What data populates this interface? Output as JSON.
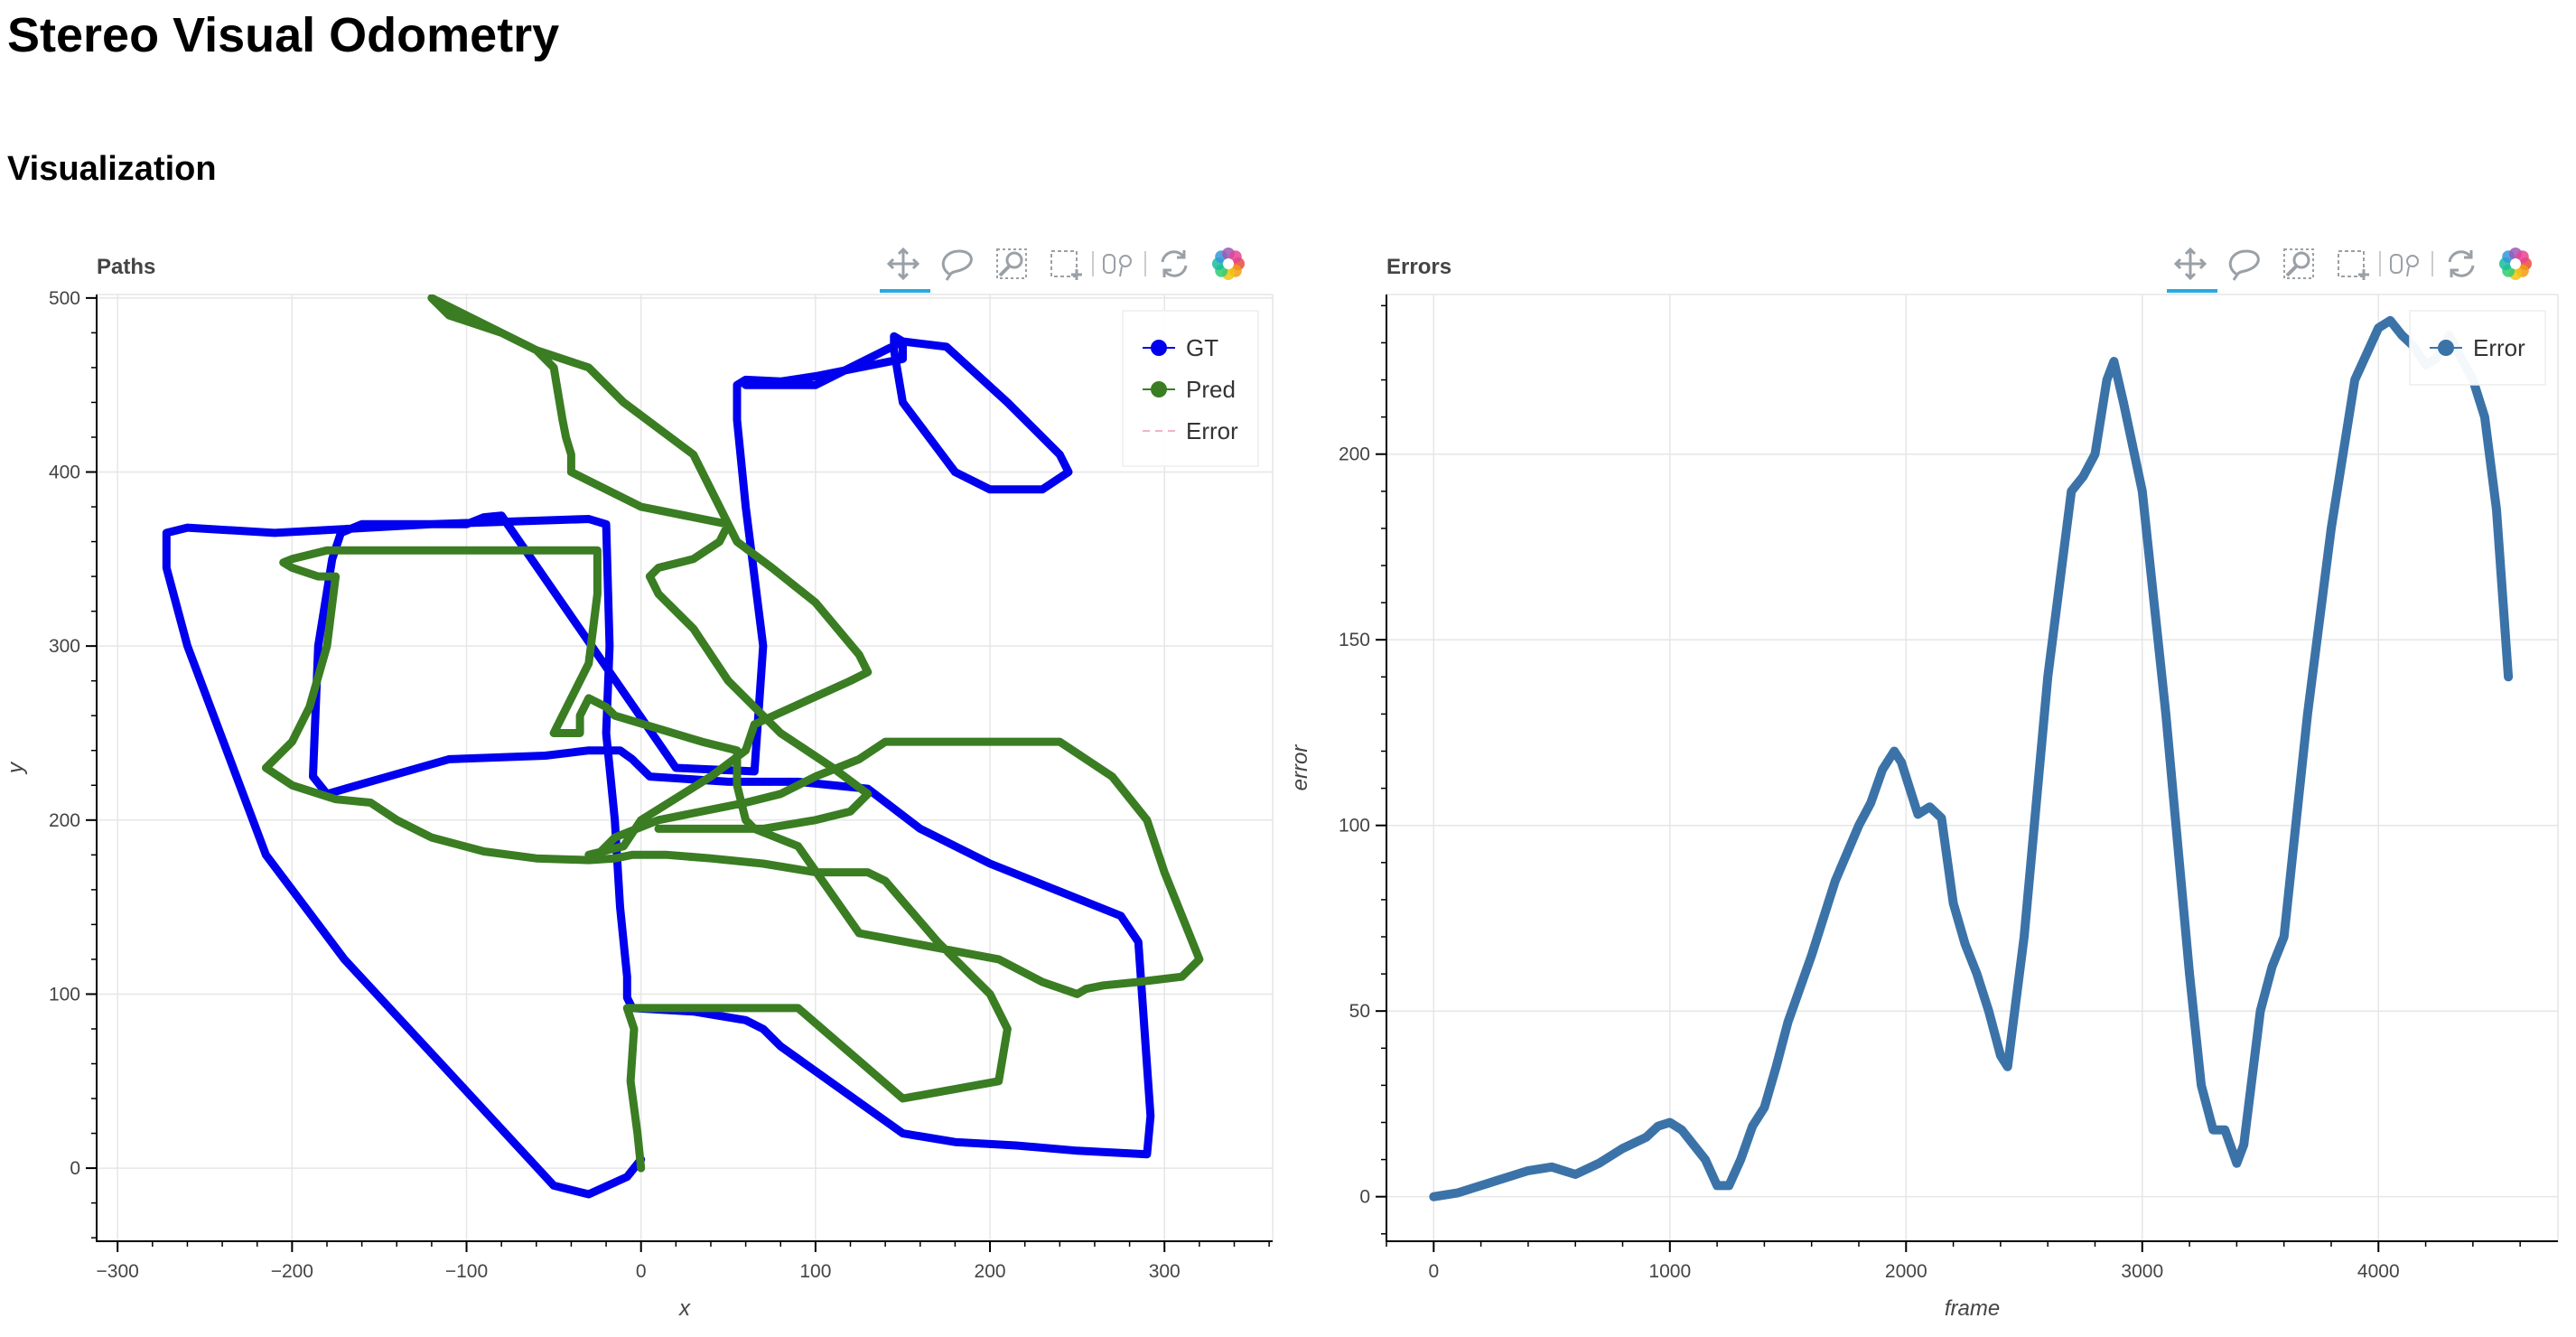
{
  "page": {
    "title": "Stereo Visual Odometry",
    "section": "Visualization"
  },
  "toolbar_tools": [
    "pan-tool",
    "lasso-select-tool",
    "wheel-zoom-tool",
    "box-select-tool",
    "hover-tool",
    "reset-tool",
    "bokeh-logo"
  ],
  "colors": {
    "gt": "#0000ee",
    "pred": "#3a7d22",
    "error": "#3b73a8",
    "error_legend_muted": "#f2b3c2"
  },
  "chart_data": [
    {
      "type": "line",
      "title": "Paths",
      "xlabel": "x",
      "ylabel": "y",
      "xlim": [
        -312,
        362
      ],
      "ylim": [
        -42,
        502
      ],
      "xticks": [
        "−300",
        "−200",
        "−100",
        "0",
        "100",
        "200",
        "300"
      ],
      "xtick_values": [
        -300,
        -200,
        -100,
        0,
        100,
        200,
        300
      ],
      "yticks": [
        "0",
        "100",
        "200",
        "300",
        "400",
        "500"
      ],
      "ytick_values": [
        0,
        100,
        200,
        300,
        400,
        500
      ],
      "grid": true,
      "legend_position": "top-right",
      "legend": [
        "GT",
        "Pred",
        "Error"
      ],
      "series": [
        {
          "name": "GT",
          "x": [
            0,
            -8,
            -30,
            -50,
            -110,
            -170,
            -215,
            -260,
            -272,
            -272,
            -260,
            -210,
            -120,
            -30,
            -20,
            -18,
            -20,
            -15,
            -12,
            -8,
            -8,
            -5,
            30,
            60,
            70,
            80,
            150,
            180,
            215,
            250,
            290,
            292,
            285,
            275,
            200,
            160,
            130,
            90,
            50,
            5,
            -5,
            -12,
            -20,
            -30,
            -55,
            -110,
            -180,
            -188,
            -185,
            -177,
            -172,
            -160,
            -130,
            -110,
            -100,
            -90,
            -80,
            20,
            65,
            70,
            60,
            55,
            55,
            60,
            80,
            100,
            150,
            150,
            145,
            145,
            150,
            180,
            200,
            230,
            245,
            240,
            210,
            175,
            150,
            100,
            60
          ],
          "y": [
            5,
            -5,
            -15,
            -10,
            55,
            120,
            180,
            300,
            345,
            365,
            368,
            365,
            370,
            373,
            370,
            300,
            250,
            200,
            150,
            110,
            98,
            92,
            90,
            85,
            80,
            70,
            20,
            15,
            13,
            10,
            8,
            30,
            130,
            145,
            175,
            195,
            218,
            222,
            222,
            225,
            235,
            240,
            240,
            240,
            237,
            235,
            215,
            225,
            300,
            350,
            365,
            370,
            370,
            370,
            370,
            374,
            375,
            230,
            228,
            300,
            380,
            430,
            450,
            453,
            452,
            455,
            465,
            475,
            478,
            470,
            440,
            400,
            390,
            390,
            400,
            410,
            440,
            472,
            475,
            450,
            450
          ]
        },
        {
          "name": "Pred",
          "x": [
            0,
            -2,
            -6,
            -4,
            -8,
            10,
            90,
            150,
            205,
            210,
            200,
            170,
            140,
            130,
            100,
            70,
            40,
            15,
            -5,
            -15,
            -30,
            -60,
            -90,
            -120,
            -140,
            -155,
            -175,
            -200,
            -215,
            -200,
            -190,
            -180,
            -175,
            -185,
            -200,
            -205,
            -200,
            -180,
            -100,
            -50,
            -25,
            -25,
            -30,
            -45,
            -50,
            -35,
            -35,
            -30,
            -20,
            -15,
            35,
            55,
            55,
            60,
            65,
            90,
            125,
            205,
            230,
            250,
            255,
            265,
            285,
            310,
            320,
            300,
            290,
            270,
            240,
            225,
            210,
            200,
            180,
            170,
            150,
            140,
            125,
            100,
            80,
            60,
            10,
            -15,
            -20,
            -25,
            -30,
            -10,
            0,
            40,
            60,
            65,
            120,
            130,
            125,
            100,
            75,
            55,
            40,
            30,
            -10,
            -30,
            -60,
            -80,
            -100,
            -120,
            -110,
            -80,
            -60,
            -50,
            -45,
            -43,
            -40,
            -40,
            0,
            50,
            45,
            30,
            10,
            5,
            10,
            30,
            50,
            80,
            110,
            130,
            120,
            100,
            70,
            50,
            30,
            10
          ],
          "y": [
            0,
            20,
            50,
            80,
            92,
            92,
            92,
            40,
            50,
            80,
            100,
            130,
            165,
            170,
            170,
            175,
            178,
            180,
            180,
            178,
            177,
            178,
            182,
            190,
            200,
            210,
            212,
            220,
            230,
            245,
            265,
            300,
            340,
            340,
            345,
            348,
            350,
            355,
            355,
            355,
            355,
            330,
            290,
            260,
            250,
            250,
            260,
            270,
            265,
            260,
            245,
            240,
            220,
            200,
            195,
            185,
            135,
            120,
            107,
            100,
            103,
            105,
            107,
            110,
            120,
            170,
            200,
            225,
            245,
            245,
            245,
            245,
            245,
            245,
            245,
            245,
            235,
            225,
            215,
            210,
            200,
            190,
            185,
            180,
            180,
            185,
            200,
            225,
            240,
            255,
            280,
            285,
            295,
            325,
            345,
            360,
            390,
            410,
            440,
            460,
            470,
            480,
            490,
            500,
            490,
            480,
            470,
            460,
            430,
            420,
            410,
            400,
            380,
            370,
            360,
            350,
            345,
            340,
            330,
            310,
            280,
            250,
            230,
            215,
            205,
            200,
            195,
            195,
            195,
            195
          ]
        }
      ]
    },
    {
      "type": "line",
      "title": "Errors",
      "xlabel": "frame",
      "ylabel": "error",
      "xlim": [
        -200,
        4760
      ],
      "ylim": [
        -12,
        243
      ],
      "xticks": [
        "0",
        "1000",
        "2000",
        "3000",
        "4000"
      ],
      "xtick_values": [
        0,
        1000,
        2000,
        3000,
        4000
      ],
      "yticks": [
        "0",
        "50",
        "100",
        "150",
        "200"
      ],
      "ytick_values": [
        0,
        50,
        100,
        150,
        200
      ],
      "grid": true,
      "legend_position": "top-right",
      "legend": [
        "Error"
      ],
      "series": [
        {
          "name": "Error",
          "x": [
            0,
            100,
            200,
            300,
            400,
            500,
            600,
            700,
            800,
            900,
            950,
            1000,
            1050,
            1100,
            1150,
            1200,
            1250,
            1300,
            1350,
            1400,
            1450,
            1500,
            1600,
            1700,
            1800,
            1850,
            1900,
            1950,
            1980,
            2050,
            2100,
            2150,
            2200,
            2250,
            2300,
            2350,
            2400,
            2430,
            2500,
            2600,
            2700,
            2750,
            2800,
            2850,
            2880,
            2920,
            3000,
            3100,
            3200,
            3250,
            3300,
            3350,
            3400,
            3430,
            3500,
            3550,
            3600,
            3650,
            3700,
            3800,
            3900,
            4000,
            4050,
            4100,
            4150,
            4200,
            4250,
            4300,
            4350,
            4400,
            4450,
            4500,
            4550
          ],
          "y": [
            0,
            1,
            3,
            5,
            7,
            8,
            6,
            9,
            13,
            16,
            19,
            20,
            18,
            14,
            10,
            3,
            3,
            10,
            19,
            24,
            35,
            47,
            65,
            85,
            100,
            106,
            115,
            120,
            117,
            103,
            105,
            102,
            79,
            68,
            60,
            50,
            38,
            35,
            70,
            140,
            190,
            194,
            200,
            220,
            225,
            214,
            190,
            130,
            60,
            30,
            18,
            18,
            9,
            14,
            50,
            62,
            70,
            100,
            130,
            180,
            220,
            234,
            236,
            232,
            229,
            224,
            226,
            232,
            226,
            220,
            210,
            185,
            140
          ]
        }
      ]
    }
  ]
}
